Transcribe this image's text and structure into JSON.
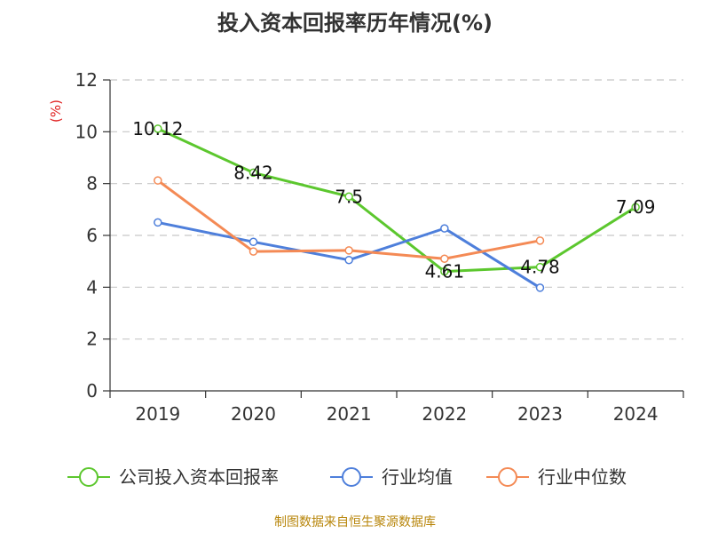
{
  "chart_data": {
    "type": "line",
    "title": "投入资本回报率历年情况(%)",
    "ylabel": "(%)",
    "xlabel": "",
    "categories": [
      "2019",
      "2020",
      "2021",
      "2022",
      "2023",
      "2024"
    ],
    "ylim": [
      0,
      12
    ],
    "yticks": [
      0,
      2,
      4,
      6,
      8,
      10,
      12
    ],
    "grid": true,
    "legend_position": "bottom",
    "series": [
      {
        "name": "公司投入资本回报率",
        "color": "#5cc72e",
        "values": [
          10.12,
          8.42,
          7.5,
          4.61,
          4.78,
          7.09
        ],
        "labels": [
          "10.12",
          "8.42",
          "7.5",
          "4.61",
          "4.78",
          "7.09"
        ]
      },
      {
        "name": "行业均值",
        "color": "#4e7fdb",
        "values": [
          6.5,
          5.75,
          5.05,
          6.27,
          3.98,
          null
        ]
      },
      {
        "name": "行业中位数",
        "color": "#f48a55",
        "values": [
          8.12,
          5.38,
          5.42,
          5.1,
          5.8,
          null
        ]
      }
    ]
  },
  "source": "制图数据来自恒生聚源数据库"
}
